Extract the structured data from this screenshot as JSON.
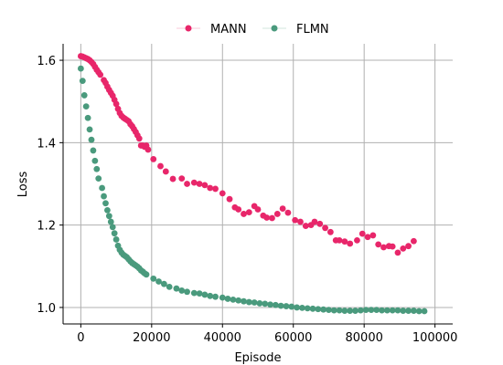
{
  "chart_data": {
    "type": "scatter",
    "title": "",
    "xlabel": "Episode",
    "ylabel": "Loss",
    "xlim": [
      -5000,
      105000
    ],
    "ylim": [
      0.96,
      1.64
    ],
    "x_ticks": [
      0,
      20000,
      40000,
      60000,
      80000,
      100000
    ],
    "x_tick_labels": [
      "0",
      "20000",
      "40000",
      "60000",
      "80000",
      "100000"
    ],
    "y_ticks": [
      1.0,
      1.2,
      1.4,
      1.6
    ],
    "y_tick_labels": [
      "1.0",
      "1.2",
      "1.4",
      "1.6"
    ],
    "grid": true,
    "legend_position": "top-center",
    "series": [
      {
        "name": "MANN",
        "color": "#e8266a",
        "points": [
          [
            0,
            1.61
          ],
          [
            500,
            1.609
          ],
          [
            1000,
            1.607
          ],
          [
            1500,
            1.605
          ],
          [
            2000,
            1.603
          ],
          [
            2500,
            1.6
          ],
          [
            3000,
            1.596
          ],
          [
            3500,
            1.591
          ],
          [
            4000,
            1.584
          ],
          [
            4500,
            1.577
          ],
          [
            5000,
            1.571
          ],
          [
            5500,
            1.565
          ],
          [
            6500,
            1.552
          ],
          [
            7000,
            1.545
          ],
          [
            7500,
            1.536
          ],
          [
            8000,
            1.528
          ],
          [
            8500,
            1.521
          ],
          [
            9000,
            1.514
          ],
          [
            9500,
            1.504
          ],
          [
            10000,
            1.494
          ],
          [
            10500,
            1.482
          ],
          [
            11000,
            1.472
          ],
          [
            11500,
            1.465
          ],
          [
            12000,
            1.461
          ],
          [
            12500,
            1.458
          ],
          [
            13000,
            1.455
          ],
          [
            13500,
            1.452
          ],
          [
            14000,
            1.445
          ],
          [
            14500,
            1.44
          ],
          [
            15000,
            1.433
          ],
          [
            15500,
            1.426
          ],
          [
            16000,
            1.418
          ],
          [
            16500,
            1.41
          ],
          [
            17000,
            1.393
          ],
          [
            17500,
            1.393
          ],
          [
            18000,
            1.39
          ],
          [
            18500,
            1.393
          ],
          [
            19000,
            1.383
          ],
          [
            20500,
            1.36
          ],
          [
            22500,
            1.343
          ],
          [
            24000,
            1.33
          ],
          [
            26000,
            1.312
          ],
          [
            28500,
            1.313
          ],
          [
            30000,
            1.3
          ],
          [
            32000,
            1.303
          ],
          [
            33500,
            1.3
          ],
          [
            35000,
            1.297
          ],
          [
            36500,
            1.29
          ],
          [
            38000,
            1.288
          ],
          [
            40000,
            1.277
          ],
          [
            42000,
            1.263
          ],
          [
            43500,
            1.243
          ],
          [
            44500,
            1.238
          ],
          [
            46000,
            1.227
          ],
          [
            47500,
            1.231
          ],
          [
            49000,
            1.246
          ],
          [
            50000,
            1.238
          ],
          [
            51500,
            1.223
          ],
          [
            52500,
            1.218
          ],
          [
            54000,
            1.217
          ],
          [
            55500,
            1.227
          ],
          [
            57000,
            1.24
          ],
          [
            58500,
            1.23
          ],
          [
            60500,
            1.212
          ],
          [
            62000,
            1.208
          ],
          [
            63500,
            1.198
          ],
          [
            65000,
            1.2
          ],
          [
            66000,
            1.208
          ],
          [
            67500,
            1.203
          ],
          [
            69000,
            1.193
          ],
          [
            70500,
            1.183
          ],
          [
            72000,
            1.163
          ],
          [
            73000,
            1.163
          ],
          [
            74500,
            1.16
          ],
          [
            76000,
            1.155
          ],
          [
            78000,
            1.163
          ],
          [
            79500,
            1.179
          ],
          [
            81000,
            1.171
          ],
          [
            82500,
            1.175
          ],
          [
            84000,
            1.153
          ],
          [
            85500,
            1.146
          ],
          [
            87000,
            1.149
          ],
          [
            88000,
            1.148
          ],
          [
            89500,
            1.133
          ],
          [
            91000,
            1.143
          ],
          [
            92500,
            1.149
          ],
          [
            94000,
            1.161
          ]
        ]
      },
      {
        "name": "FLMN",
        "color": "#4a9a7d",
        "points": [
          [
            0,
            1.58
          ],
          [
            500,
            1.55
          ],
          [
            1000,
            1.515
          ],
          [
            1500,
            1.488
          ],
          [
            2000,
            1.46
          ],
          [
            2500,
            1.432
          ],
          [
            3000,
            1.407
          ],
          [
            3500,
            1.381
          ],
          [
            4000,
            1.356
          ],
          [
            4500,
            1.336
          ],
          [
            5000,
            1.313
          ],
          [
            6000,
            1.29
          ],
          [
            6500,
            1.27
          ],
          [
            7000,
            1.253
          ],
          [
            7500,
            1.236
          ],
          [
            8000,
            1.222
          ],
          [
            8500,
            1.208
          ],
          [
            9000,
            1.195
          ],
          [
            9500,
            1.18
          ],
          [
            10000,
            1.165
          ],
          [
            10500,
            1.15
          ],
          [
            11000,
            1.14
          ],
          [
            11500,
            1.133
          ],
          [
            12000,
            1.128
          ],
          [
            12500,
            1.125
          ],
          [
            13000,
            1.122
          ],
          [
            13500,
            1.117
          ],
          [
            14000,
            1.112
          ],
          [
            14500,
            1.108
          ],
          [
            15000,
            1.105
          ],
          [
            15500,
            1.102
          ],
          [
            16000,
            1.099
          ],
          [
            16500,
            1.095
          ],
          [
            17000,
            1.09
          ],
          [
            17500,
            1.087
          ],
          [
            18000,
            1.083
          ],
          [
            18500,
            1.08
          ],
          [
            20500,
            1.07
          ],
          [
            22000,
            1.063
          ],
          [
            23500,
            1.057
          ],
          [
            25000,
            1.05
          ],
          [
            27000,
            1.046
          ],
          [
            28500,
            1.041
          ],
          [
            30000,
            1.038
          ],
          [
            32000,
            1.035
          ],
          [
            33500,
            1.034
          ],
          [
            35000,
            1.031
          ],
          [
            36500,
            1.028
          ],
          [
            38000,
            1.026
          ],
          [
            40000,
            1.024
          ],
          [
            41500,
            1.021
          ],
          [
            43000,
            1.019
          ],
          [
            44500,
            1.017
          ],
          [
            46000,
            1.015
          ],
          [
            47500,
            1.013
          ],
          [
            49000,
            1.012
          ],
          [
            50500,
            1.01
          ],
          [
            52000,
            1.009
          ],
          [
            53500,
            1.007
          ],
          [
            55000,
            1.006
          ],
          [
            56500,
            1.004
          ],
          [
            58000,
            1.003
          ],
          [
            59500,
            1.002
          ],
          [
            61000,
            1.0
          ],
          [
            62500,
            0.999
          ],
          [
            64000,
            0.998
          ],
          [
            65500,
            0.997
          ],
          [
            67000,
            0.996
          ],
          [
            68500,
            0.995
          ],
          [
            70000,
            0.994
          ],
          [
            71500,
            0.993
          ],
          [
            73000,
            0.993
          ],
          [
            74500,
            0.992
          ],
          [
            76000,
            0.992
          ],
          [
            77500,
            0.992
          ],
          [
            79000,
            0.993
          ],
          [
            80500,
            0.994
          ],
          [
            82000,
            0.994
          ],
          [
            83500,
            0.994
          ],
          [
            85000,
            0.993
          ],
          [
            86500,
            0.993
          ],
          [
            88000,
            0.993
          ],
          [
            89500,
            0.993
          ],
          [
            91000,
            0.992
          ],
          [
            92500,
            0.992
          ],
          [
            94000,
            0.992
          ],
          [
            95500,
            0.991
          ],
          [
            97000,
            0.991
          ]
        ]
      }
    ]
  }
}
